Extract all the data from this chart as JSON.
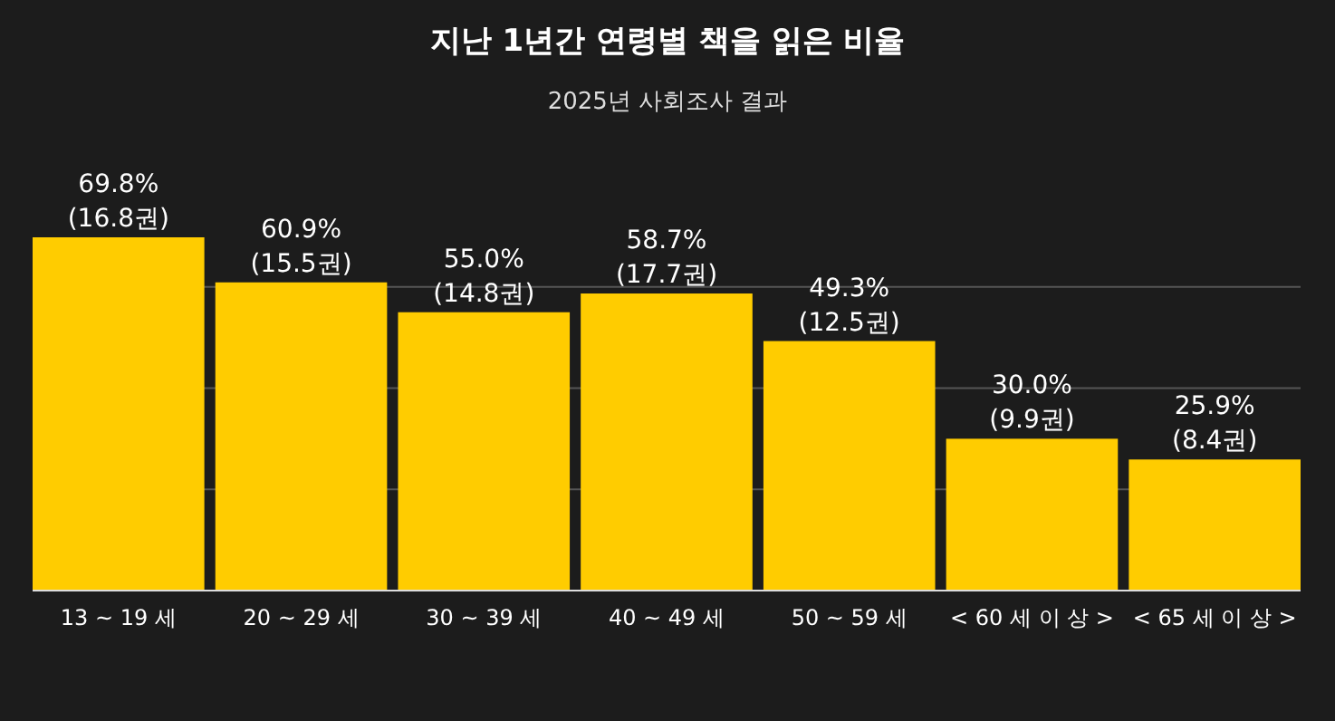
{
  "chart_data": {
    "type": "bar",
    "title": "지난 1년간 연령별 책을 읽은 비율",
    "subtitle": "2025년 사회조사 결과",
    "categories": [
      "13 ~ 19 세",
      "20 ~ 29 세",
      "30 ~ 39 세",
      "40 ~ 49 세",
      "50 ~ 59 세",
      "< 60 세 이 상 >",
      "< 65 세 이 상 >"
    ],
    "values": [
      69.8,
      60.9,
      55.0,
      58.7,
      49.3,
      30.0,
      25.9
    ],
    "value_labels": [
      "69.8%\n(16.8권)",
      "60.9%\n(15.5권)",
      "55.0%\n(14.8권)",
      "58.7%\n(17.7권)",
      "49.3%\n(12.5권)",
      "30.0%\n(9.9권)",
      "25.9%\n(8.4권)"
    ],
    "color": "#ffcc00",
    "yticks": [
      {
        "value": 20,
        "label": null
      },
      {
        "value": 40,
        "label": null
      },
      {
        "value": 60,
        "label": null
      }
    ],
    "grid": "y",
    "tick_labels": "x"
  }
}
